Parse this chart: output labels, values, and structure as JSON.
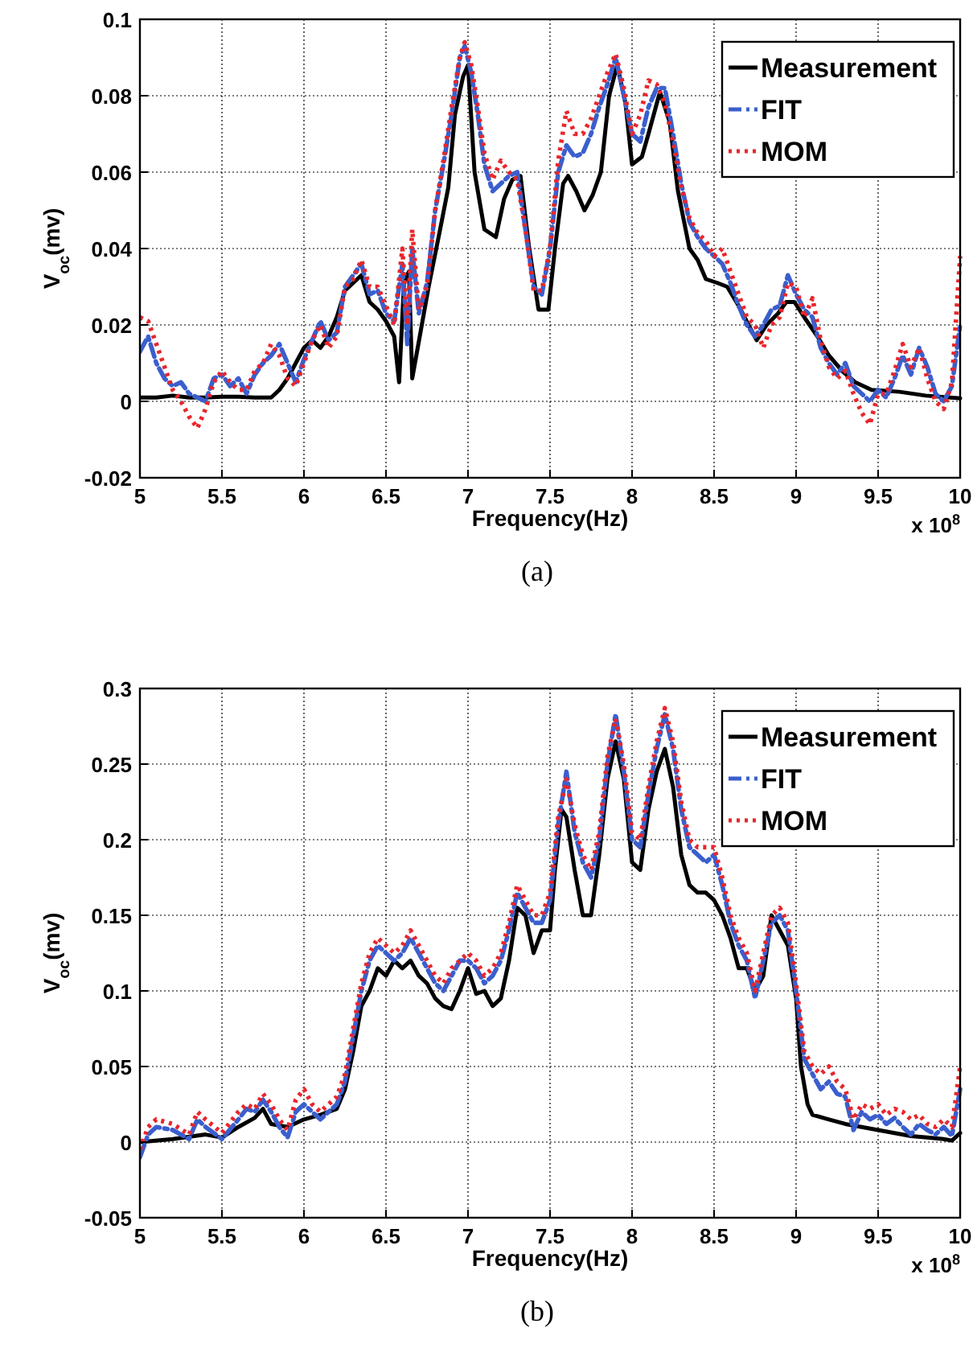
{
  "chart_data": [
    {
      "type": "line",
      "xlabel": "Frequency(Hz)",
      "ylabel": "V$_{oc}$(mv)",
      "annotations": [
        "x 10$^{8}$",
        "(a)"
      ],
      "xlim": [
        5,
        10
      ],
      "xticks": [
        5,
        5.5,
        6,
        6.5,
        7,
        7.5,
        8,
        8.5,
        9,
        9.5,
        10
      ],
      "ylim": [
        -0.02,
        0.1
      ],
      "yticks": [
        -0.02,
        0,
        0.02,
        0.04,
        0.06,
        0.08,
        0.1
      ],
      "grid": true,
      "legend": "top right",
      "x": [
        5,
        5.05,
        5.1,
        5.15,
        5.2,
        5.25,
        5.3,
        5.35,
        5.4,
        5.45,
        5.5,
        5.55,
        5.6,
        5.65,
        5.7,
        5.75,
        5.8,
        5.85,
        5.9,
        5.95,
        6,
        6.05,
        6.1,
        6.15,
        6.2,
        6.25,
        6.3,
        6.35,
        6.4,
        6.45,
        6.5,
        6.55,
        6.6,
        6.63,
        6.66,
        6.7,
        6.75,
        6.8,
        6.85,
        6.9,
        6.95,
        6.98,
        7.02,
        7.06,
        7.1,
        7.15,
        7.2,
        7.25,
        7.3,
        7.35,
        7.4,
        7.45,
        7.5,
        7.55,
        7.6,
        7.65,
        7.7,
        7.75,
        7.8,
        7.85,
        7.9,
        7.95,
        8,
        8.05,
        8.1,
        8.15,
        8.2,
        8.25,
        8.3,
        8.35,
        8.4,
        8.45,
        8.5,
        8.55,
        8.6,
        8.65,
        8.7,
        8.75,
        8.8,
        8.85,
        8.9,
        8.95,
        9,
        9.05,
        9.1,
        9.15,
        9.2,
        9.25,
        9.3,
        9.35,
        9.4,
        9.45,
        9.5,
        9.55,
        9.6,
        9.65,
        9.7,
        9.75,
        9.8,
        9.85,
        9.9,
        9.95,
        10
      ],
      "series": [
        {
          "name": "Measurement",
          "color": "#000000",
          "line_style": "solid",
          "x": [
            5,
            5.1,
            5.2,
            5.3,
            5.4,
            5.5,
            5.6,
            5.7,
            5.8,
            5.85,
            5.9,
            5.95,
            6,
            6.05,
            6.1,
            6.15,
            6.2,
            6.25,
            6.3,
            6.35,
            6.4,
            6.45,
            6.5,
            6.55,
            6.58,
            6.61,
            6.64,
            6.66,
            6.71,
            6.76,
            6.83,
            6.88,
            6.92,
            6.97,
            7,
            7.04,
            7.1,
            7.17,
            7.22,
            7.27,
            7.32,
            7.37,
            7.43,
            7.49,
            7.53,
            7.58,
            7.61,
            7.66,
            7.71,
            7.76,
            7.81,
            7.86,
            7.91,
            7.96,
            8,
            8.06,
            8.1,
            8.17,
            8.23,
            8.28,
            8.35,
            8.4,
            8.45,
            8.52,
            8.58,
            8.65,
            8.71,
            8.76,
            8.82,
            8.89,
            8.94,
            8.99,
            9.05,
            9.13,
            9.2,
            9.28,
            9.36,
            9.46,
            9.63,
            9.79,
            10
          ],
          "values": [
            0.001,
            0.001,
            0.0015,
            0.001,
            0.001,
            0.0012,
            0.0012,
            0.001,
            0.001,
            0.003,
            0.006,
            0.01,
            0.014,
            0.016,
            0.014,
            0.017,
            0.022,
            0.029,
            0.031,
            0.033,
            0.026,
            0.024,
            0.021,
            0.017,
            0.005,
            0.031,
            0.034,
            0.006,
            0.018,
            0.03,
            0.045,
            0.056,
            0.075,
            0.085,
            0.088,
            0.06,
            0.045,
            0.043,
            0.053,
            0.058,
            0.059,
            0.041,
            0.024,
            0.024,
            0.04,
            0.057,
            0.059,
            0.055,
            0.05,
            0.054,
            0.06,
            0.08,
            0.088,
            0.078,
            0.062,
            0.064,
            0.07,
            0.081,
            0.073,
            0.055,
            0.04,
            0.037,
            0.032,
            0.031,
            0.03,
            0.025,
            0.02,
            0.016,
            0.02,
            0.023,
            0.026,
            0.026,
            0.022,
            0.017,
            0.012,
            0.008,
            0.005,
            0.003,
            0.0025,
            0.0015,
            0.0008
          ]
        },
        {
          "name": "FIT",
          "color": "#3a5fcd",
          "line_style": "dashed",
          "values": [
            0.013,
            0.017,
            0.01,
            0.006,
            0.004,
            0.005,
            0.002,
            0.001,
            0,
            0.006,
            0.007,
            0.004,
            0.006,
            0.002,
            0.007,
            0.01,
            0.012,
            0.015,
            0.01,
            0.005,
            0.011,
            0.016,
            0.021,
            0.016,
            0.018,
            0.03,
            0.033,
            0.036,
            0.028,
            0.029,
            0.023,
            0.021,
            0.036,
            0.015,
            0.04,
            0.023,
            0.031,
            0.05,
            0.062,
            0.075,
            0.09,
            0.093,
            0.086,
            0.075,
            0.062,
            0.055,
            0.057,
            0.059,
            0.06,
            0.045,
            0.03,
            0.028,
            0.04,
            0.06,
            0.067,
            0.064,
            0.065,
            0.07,
            0.077,
            0.083,
            0.09,
            0.08,
            0.07,
            0.068,
            0.077,
            0.082,
            0.082,
            0.07,
            0.057,
            0.047,
            0.043,
            0.04,
            0.038,
            0.036,
            0.031,
            0.025,
            0.02,
            0.017,
            0.02,
            0.024,
            0.025,
            0.033,
            0.028,
            0.024,
            0.022,
            0.014,
            0.01,
            0.007,
            0.01,
            0.004,
            0.002,
            0,
            0.003,
            0.001,
            0.006,
            0.012,
            0.007,
            0.014,
            0.009,
            0.002,
            0,
            0.004,
            0.02
          ]
        },
        {
          "name": "MOM",
          "color": "#e8262b",
          "line_style": "dotted",
          "values": [
            0.022,
            0.021,
            0.015,
            0.009,
            0.003,
            0,
            -0.004,
            -0.007,
            -0.002,
            0.005,
            0.008,
            0.005,
            0.003,
            0.003,
            0.008,
            0.01,
            0.015,
            0.012,
            0.006,
            0.004,
            0.01,
            0.016,
            0.02,
            0.014,
            0.017,
            0.03,
            0.032,
            0.037,
            0.03,
            0.03,
            0.025,
            0.02,
            0.04,
            0.02,
            0.045,
            0.024,
            0.03,
            0.05,
            0.063,
            0.077,
            0.09,
            0.094,
            0.088,
            0.077,
            0.065,
            0.058,
            0.063,
            0.06,
            0.058,
            0.045,
            0.029,
            0.029,
            0.04,
            0.063,
            0.076,
            0.07,
            0.07,
            0.074,
            0.08,
            0.086,
            0.091,
            0.082,
            0.07,
            0.075,
            0.084,
            0.083,
            0.078,
            0.068,
            0.056,
            0.048,
            0.044,
            0.042,
            0.038,
            0.04,
            0.034,
            0.028,
            0.022,
            0.02,
            0.014,
            0.02,
            0.022,
            0.031,
            0.03,
            0.022,
            0.027,
            0.016,
            0.009,
            0.006,
            0.008,
            0.002,
            -0.003,
            -0.006,
            0.002,
            0.002,
            0.008,
            0.015,
            0.009,
            0.014,
            0.006,
            0,
            -0.002,
            0.005,
            0.038
          ]
        }
      ]
    },
    {
      "type": "line",
      "xlabel": "Frequency(Hz)",
      "ylabel": "V$_{oc}$(mv)",
      "annotations": [
        "x 10$^{8}$",
        "(b)"
      ],
      "xlim": [
        5,
        10
      ],
      "xticks": [
        5,
        5.5,
        6,
        6.5,
        7,
        7.5,
        8,
        8.5,
        9,
        9.5,
        10
      ],
      "ylim": [
        -0.05,
        0.3
      ],
      "yticks": [
        -0.05,
        0,
        0.05,
        0.1,
        0.15,
        0.2,
        0.25,
        0.3
      ],
      "grid": true,
      "legend": "top right",
      "x": [
        5,
        5.05,
        5.1,
        5.2,
        5.3,
        5.35,
        5.4,
        5.5,
        5.6,
        5.65,
        5.7,
        5.75,
        5.8,
        5.85,
        5.9,
        5.95,
        6,
        6.05,
        6.1,
        6.15,
        6.2,
        6.25,
        6.3,
        6.35,
        6.4,
        6.45,
        6.5,
        6.55,
        6.6,
        6.65,
        6.7,
        6.75,
        6.8,
        6.85,
        6.9,
        6.95,
        7,
        7.05,
        7.1,
        7.15,
        7.2,
        7.25,
        7.3,
        7.35,
        7.4,
        7.45,
        7.5,
        7.55,
        7.6,
        7.65,
        7.7,
        7.75,
        7.8,
        7.85,
        7.9,
        7.95,
        8,
        8.05,
        8.1,
        8.15,
        8.2,
        8.25,
        8.3,
        8.35,
        8.4,
        8.45,
        8.5,
        8.55,
        8.6,
        8.65,
        8.7,
        8.75,
        8.8,
        8.85,
        8.9,
        8.95,
        9,
        9.05,
        9.1,
        9.15,
        9.2,
        9.25,
        9.3,
        9.35,
        9.4,
        9.45,
        9.5,
        9.55,
        9.6,
        9.65,
        9.7,
        9.75,
        9.8,
        9.85,
        9.9,
        9.95,
        10
      ],
      "series": [
        {
          "name": "Measurement",
          "color": "#000000",
          "line_style": "solid",
          "x": [
            5,
            5.2,
            5.4,
            5.5,
            5.6,
            5.7,
            5.75,
            5.8,
            5.9,
            6,
            6.1,
            6.2,
            6.25,
            6.3,
            6.35,
            6.4,
            6.45,
            6.5,
            6.55,
            6.6,
            6.65,
            6.7,
            6.75,
            6.8,
            6.85,
            6.9,
            6.95,
            7,
            7.05,
            7.1,
            7.15,
            7.2,
            7.25,
            7.3,
            7.35,
            7.4,
            7.45,
            7.5,
            7.53,
            7.57,
            7.6,
            7.65,
            7.7,
            7.75,
            7.8,
            7.85,
            7.9,
            7.95,
            8,
            8.05,
            8.1,
            8.15,
            8.2,
            8.25,
            8.3,
            8.35,
            8.4,
            8.45,
            8.5,
            8.55,
            8.6,
            8.65,
            8.7,
            8.75,
            8.8,
            8.85,
            8.9,
            8.95,
            9,
            9.03,
            9.07,
            9.1,
            9.2,
            9.3,
            9.4,
            9.5,
            9.6,
            9.7,
            9.8,
            9.9,
            9.95,
            10
          ],
          "values": [
            0,
            0.002,
            0.005,
            0.003,
            0.01,
            0.016,
            0.022,
            0.012,
            0.01,
            0.015,
            0.018,
            0.022,
            0.035,
            0.06,
            0.09,
            0.1,
            0.115,
            0.11,
            0.12,
            0.115,
            0.12,
            0.11,
            0.105,
            0.095,
            0.09,
            0.088,
            0.1,
            0.115,
            0.098,
            0.1,
            0.09,
            0.095,
            0.12,
            0.155,
            0.15,
            0.125,
            0.14,
            0.14,
            0.18,
            0.22,
            0.215,
            0.18,
            0.15,
            0.15,
            0.19,
            0.24,
            0.265,
            0.24,
            0.185,
            0.18,
            0.22,
            0.245,
            0.26,
            0.235,
            0.19,
            0.17,
            0.165,
            0.165,
            0.16,
            0.15,
            0.135,
            0.115,
            0.115,
            0.1,
            0.11,
            0.15,
            0.14,
            0.13,
            0.095,
            0.05,
            0.025,
            0.018,
            0.015,
            0.012,
            0.01,
            0.008,
            0.006,
            0.004,
            0.003,
            0.002,
            0.001,
            0.006
          ]
        },
        {
          "name": "FIT",
          "color": "#3a5fcd",
          "line_style": "dashed",
          "values": [
            -0.01,
            0.005,
            0.01,
            0.008,
            0.002,
            0.015,
            0.01,
            0.002,
            0.015,
            0.022,
            0.02,
            0.028,
            0.02,
            0.01,
            0.003,
            0.02,
            0.025,
            0.02,
            0.015,
            0.02,
            0.025,
            0.04,
            0.07,
            0.1,
            0.12,
            0.13,
            0.125,
            0.12,
            0.125,
            0.135,
            0.125,
            0.115,
            0.105,
            0.1,
            0.11,
            0.12,
            0.12,
            0.115,
            0.105,
            0.11,
            0.12,
            0.14,
            0.165,
            0.155,
            0.145,
            0.145,
            0.16,
            0.21,
            0.245,
            0.205,
            0.185,
            0.175,
            0.2,
            0.25,
            0.283,
            0.245,
            0.2,
            0.195,
            0.23,
            0.26,
            0.283,
            0.26,
            0.22,
            0.195,
            0.19,
            0.185,
            0.19,
            0.17,
            0.145,
            0.13,
            0.12,
            0.095,
            0.12,
            0.145,
            0.15,
            0.14,
            0.1,
            0.055,
            0.045,
            0.035,
            0.04,
            0.032,
            0.03,
            0.008,
            0.02,
            0.015,
            0.018,
            0.012,
            0.016,
            0.01,
            0.005,
            0.012,
            0.008,
            0.005,
            0.01,
            0.004,
            0.035
          ]
        },
        {
          "name": "MOM",
          "color": "#e8262b",
          "line_style": "dotted",
          "values": [
            -0.005,
            0.01,
            0.015,
            0.012,
            0.005,
            0.02,
            0.015,
            0.006,
            0.02,
            0.025,
            0.022,
            0.032,
            0.025,
            0.015,
            0.008,
            0.028,
            0.035,
            0.025,
            0.02,
            0.025,
            0.03,
            0.045,
            0.075,
            0.105,
            0.125,
            0.135,
            0.13,
            0.125,
            0.13,
            0.14,
            0.13,
            0.12,
            0.11,
            0.105,
            0.115,
            0.12,
            0.125,
            0.12,
            0.11,
            0.115,
            0.125,
            0.145,
            0.17,
            0.16,
            0.15,
            0.15,
            0.165,
            0.215,
            0.24,
            0.21,
            0.19,
            0.18,
            0.205,
            0.255,
            0.28,
            0.25,
            0.205,
            0.2,
            0.235,
            0.265,
            0.287,
            0.265,
            0.225,
            0.2,
            0.195,
            0.195,
            0.195,
            0.175,
            0.15,
            0.135,
            0.125,
            0.1,
            0.125,
            0.15,
            0.155,
            0.145,
            0.105,
            0.06,
            0.05,
            0.045,
            0.05,
            0.04,
            0.035,
            0.015,
            0.025,
            0.022,
            0.025,
            0.018,
            0.022,
            0.02,
            0.015,
            0.018,
            0.012,
            0.01,
            0.015,
            0.01,
            0.05
          ]
        }
      ]
    }
  ]
}
